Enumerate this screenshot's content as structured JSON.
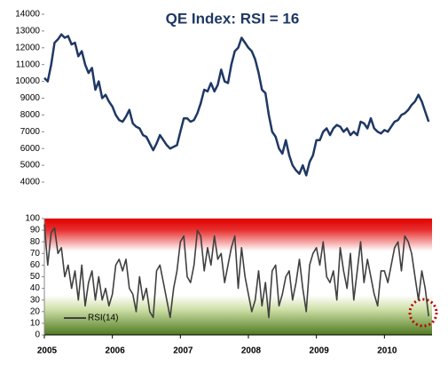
{
  "chart_data": [
    {
      "type": "line",
      "title": "QE Index: RSI = 16",
      "x": [
        2005,
        2005.05,
        2005.1,
        2005.15,
        2005.2,
        2005.25,
        2005.3,
        2005.35,
        2005.4,
        2005.45,
        2005.5,
        2005.55,
        2005.6,
        2005.65,
        2005.7,
        2005.75,
        2005.8,
        2005.85,
        2005.9,
        2005.95,
        2006,
        2006.05,
        2006.1,
        2006.15,
        2006.2,
        2006.25,
        2006.3,
        2006.35,
        2006.4,
        2006.45,
        2006.5,
        2006.55,
        2006.6,
        2006.65,
        2006.7,
        2006.75,
        2006.8,
        2006.85,
        2006.9,
        2006.95,
        2007,
        2007.05,
        2007.1,
        2007.15,
        2007.2,
        2007.25,
        2007.3,
        2007.35,
        2007.4,
        2007.45,
        2007.5,
        2007.55,
        2007.6,
        2007.65,
        2007.7,
        2007.75,
        2007.8,
        2007.85,
        2007.9,
        2007.95,
        2008,
        2008.05,
        2008.1,
        2008.15,
        2008.2,
        2008.25,
        2008.3,
        2008.35,
        2008.4,
        2008.45,
        2008.5,
        2008.55,
        2008.6,
        2008.65,
        2008.7,
        2008.75,
        2008.8,
        2008.85,
        2008.9,
        2008.95,
        2009,
        2009.05,
        2009.1,
        2009.15,
        2009.2,
        2009.25,
        2009.3,
        2009.35,
        2009.4,
        2009.45,
        2009.5,
        2009.55,
        2009.6,
        2009.65,
        2009.7,
        2009.75,
        2009.8,
        2009.85,
        2009.9,
        2009.95,
        2010,
        2010.05,
        2010.1,
        2010.15,
        2010.2,
        2010.25,
        2010.3,
        2010.35,
        2010.4,
        2010.45,
        2010.5,
        2010.55,
        2010.6,
        2010.65
      ],
      "series": [
        {
          "color": "#1f3864",
          "values": [
            10200,
            10000,
            11000,
            12300,
            12500,
            12800,
            12600,
            12700,
            12200,
            12300,
            11500,
            11800,
            11000,
            10500,
            10800,
            9500,
            10000,
            9000,
            9200,
            8800,
            8500,
            8000,
            7700,
            7600,
            7900,
            8300,
            7500,
            7300,
            7200,
            6800,
            6700,
            6300,
            5900,
            6300,
            6800,
            6500,
            6200,
            6000,
            6100,
            6200,
            7000,
            7800,
            7800,
            7600,
            7700,
            8100,
            8700,
            9500,
            9400,
            9900,
            9400,
            9800,
            10700,
            10000,
            9900,
            11000,
            11800,
            12000,
            12600,
            12300,
            12000,
            11800,
            11300,
            10500,
            9500,
            9300,
            8000,
            7000,
            6700,
            6000,
            5700,
            6500,
            5600,
            5000,
            4700,
            4500,
            5000,
            4400,
            5200,
            5600,
            6500,
            6500,
            7000,
            7200,
            6800,
            7200,
            7400,
            7300,
            7000,
            7200,
            6800,
            7000,
            6800,
            7600,
            7500,
            7200,
            7800,
            7200,
            7000,
            6900,
            7100,
            7000,
            7300,
            7600,
            7700,
            8000,
            8100,
            8300,
            8600,
            8800,
            9200,
            8800,
            8200,
            7600
          ]
        }
      ],
      "xlim": [
        2005,
        2010.7
      ],
      "ylim": [
        4000,
        14000
      ],
      "yticks": [
        4000,
        5000,
        6000,
        7000,
        8000,
        9000,
        10000,
        11000,
        12000,
        13000,
        14000
      ]
    },
    {
      "type": "line",
      "x": [
        2005,
        2005.05,
        2005.1,
        2005.15,
        2005.2,
        2005.25,
        2005.3,
        2005.35,
        2005.4,
        2005.45,
        2005.5,
        2005.55,
        2005.6,
        2005.65,
        2005.7,
        2005.75,
        2005.8,
        2005.85,
        2005.9,
        2005.95,
        2006,
        2006.05,
        2006.1,
        2006.15,
        2006.2,
        2006.25,
        2006.3,
        2006.35,
        2006.4,
        2006.45,
        2006.5,
        2006.55,
        2006.6,
        2006.65,
        2006.7,
        2006.75,
        2006.8,
        2006.85,
        2006.9,
        2006.95,
        2007,
        2007.05,
        2007.1,
        2007.15,
        2007.2,
        2007.25,
        2007.3,
        2007.35,
        2007.4,
        2007.45,
        2007.5,
        2007.55,
        2007.6,
        2007.65,
        2007.7,
        2007.75,
        2007.8,
        2007.85,
        2007.9,
        2007.95,
        2008,
        2008.05,
        2008.1,
        2008.15,
        2008.2,
        2008.25,
        2008.3,
        2008.35,
        2008.4,
        2008.45,
        2008.5,
        2008.55,
        2008.6,
        2008.65,
        2008.7,
        2008.75,
        2008.8,
        2008.85,
        2008.9,
        2008.95,
        2009,
        2009.05,
        2009.1,
        2009.15,
        2009.2,
        2009.25,
        2009.3,
        2009.35,
        2009.4,
        2009.45,
        2009.5,
        2009.55,
        2009.6,
        2009.65,
        2009.7,
        2009.75,
        2009.8,
        2009.85,
        2009.9,
        2009.95,
        2010,
        2010.05,
        2010.1,
        2010.15,
        2010.2,
        2010.25,
        2010.3,
        2010.35,
        2010.4,
        2010.45,
        2010.5,
        2010.55,
        2010.6,
        2010.65
      ],
      "series": [
        {
          "name": "RSI(14)",
          "color": "#404040",
          "values": [
            95,
            60,
            88,
            92,
            70,
            75,
            50,
            60,
            40,
            55,
            30,
            60,
            25,
            45,
            55,
            30,
            50,
            30,
            40,
            25,
            35,
            60,
            65,
            55,
            65,
            40,
            35,
            20,
            50,
            30,
            40,
            20,
            15,
            55,
            60,
            45,
            30,
            15,
            40,
            55,
            80,
            85,
            50,
            45,
            60,
            90,
            85,
            55,
            75,
            60,
            85,
            65,
            70,
            45,
            60,
            75,
            85,
            40,
            75,
            50,
            35,
            20,
            30,
            55,
            25,
            45,
            15,
            55,
            60,
            25,
            35,
            50,
            55,
            30,
            45,
            65,
            40,
            20,
            60,
            70,
            75,
            60,
            80,
            50,
            45,
            55,
            30,
            75,
            55,
            40,
            70,
            30,
            55,
            80,
            45,
            65,
            50,
            35,
            25,
            55,
            55,
            45,
            60,
            75,
            80,
            55,
            85,
            80,
            70,
            50,
            30,
            55,
            40,
            16
          ]
        }
      ],
      "xlim": [
        2005,
        2010.7
      ],
      "xticks": [
        2005,
        2006,
        2007,
        2008,
        2009,
        2010
      ],
      "ylim": [
        0,
        100
      ],
      "yticks": [
        0,
        10,
        20,
        30,
        40,
        50,
        60,
        70,
        80,
        90,
        100
      ]
    }
  ]
}
